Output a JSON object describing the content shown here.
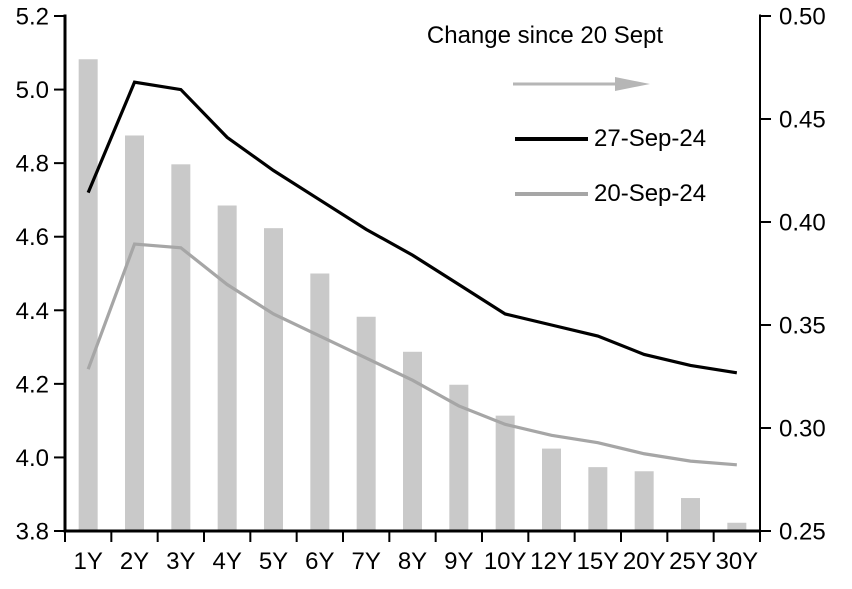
{
  "chart_data": {
    "type": "bar",
    "subtype": "combo-bar-line-dual-axis",
    "categories": [
      "1Y",
      "2Y",
      "3Y",
      "4Y",
      "5Y",
      "6Y",
      "7Y",
      "8Y",
      "9Y",
      "10Y",
      "12Y",
      "15Y",
      "20Y",
      "25Y",
      "30Y"
    ],
    "series": [
      {
        "name": "Change since 20 Sept",
        "type": "bar",
        "axis": "right",
        "color": "#c9c9c9",
        "values": [
          0.479,
          0.442,
          0.428,
          0.408,
          0.397,
          0.375,
          0.354,
          0.337,
          0.321,
          0.306,
          0.29,
          0.281,
          0.279,
          0.266,
          0.254
        ]
      },
      {
        "name": "27-Sep-24",
        "type": "line",
        "axis": "left",
        "color": "#000000",
        "values": [
          4.72,
          5.02,
          5.0,
          4.87,
          4.78,
          4.7,
          4.62,
          4.55,
          4.47,
          4.39,
          4.36,
          4.33,
          4.28,
          4.25,
          4.23
        ]
      },
      {
        "name": "20-Sep-24",
        "type": "line",
        "axis": "left",
        "color": "#a6a6a6",
        "values": [
          4.24,
          4.58,
          4.57,
          4.47,
          4.39,
          4.33,
          4.27,
          4.21,
          4.14,
          4.09,
          4.06,
          4.04,
          4.01,
          3.99,
          3.98
        ]
      }
    ],
    "left_axis": {
      "min": 3.8,
      "max": 5.2,
      "step": 0.2,
      "tick_labels": [
        "5.2",
        "5.0",
        "4.8",
        "4.6",
        "4.4",
        "4.2",
        "4.0",
        "3.8"
      ]
    },
    "right_axis": {
      "min": 0.25,
      "max": 0.5,
      "step": 0.05,
      "tick_labels": [
        "0.50",
        "0.45",
        "0.40",
        "0.35",
        "0.30",
        "0.25"
      ]
    },
    "grid": false,
    "legend_position": "top-center",
    "legend": {
      "title": "Change since 20 Sept",
      "arrow_icon": "right-arrow",
      "arrow_color": "#b6b6b6",
      "entries": [
        {
          "label": "27-Sep-24",
          "color": "#000000"
        },
        {
          "label": "20-Sep-24",
          "color": "#a6a6a6"
        }
      ]
    }
  }
}
